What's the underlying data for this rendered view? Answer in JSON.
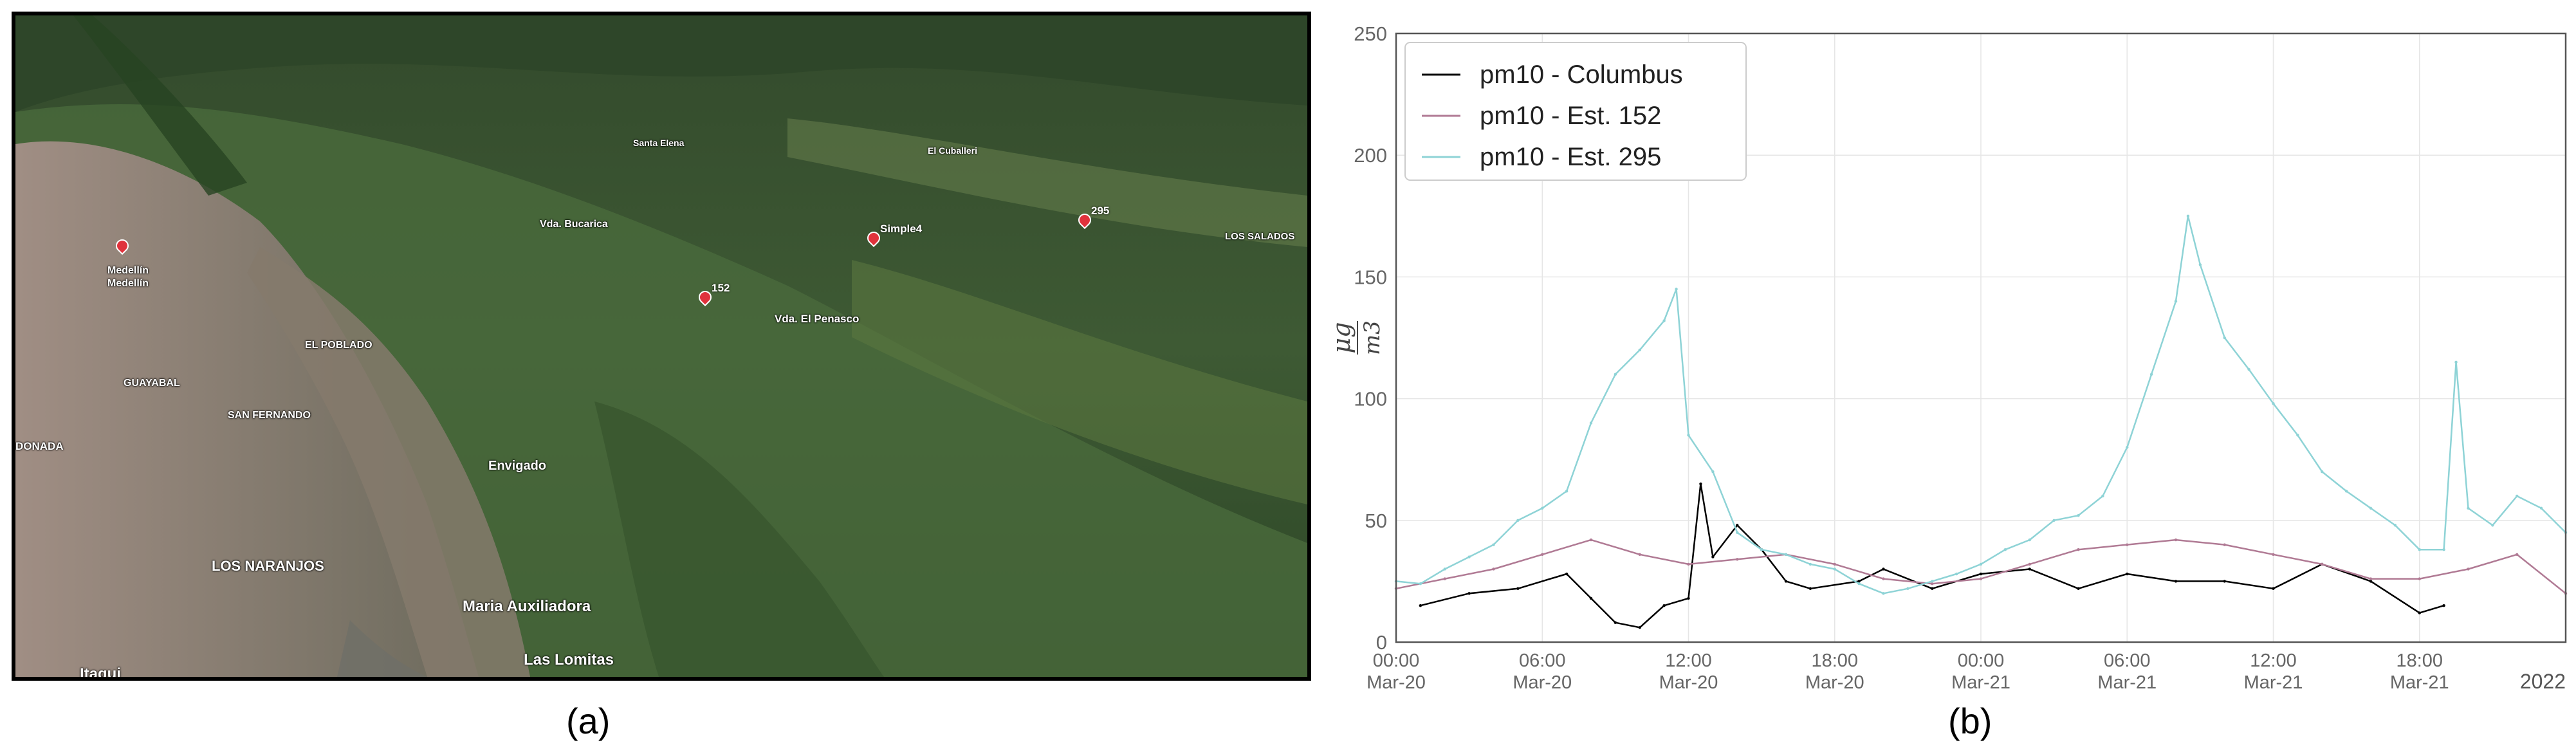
{
  "captions": {
    "left": "(a)",
    "right": "(b)"
  },
  "map": {
    "places": [
      {
        "label": "Santa Elena"
      },
      {
        "label": "El Cuballeri"
      },
      {
        "label": "Vda. Bucarica"
      },
      {
        "label": "LOS SALADOS"
      },
      {
        "label": "Medellín"
      },
      {
        "label": "Medellín"
      },
      {
        "label": "Vda. El Penasco"
      },
      {
        "label": "EL POBLADO"
      },
      {
        "label": "GUAYABAL"
      },
      {
        "label": "SAN FERNANDO"
      },
      {
        "label": "DONADA"
      },
      {
        "label": "Envigado"
      },
      {
        "label": "LOS NARANJOS"
      },
      {
        "label": "Maria Auxiliadora"
      },
      {
        "label": "Las Lomitas"
      },
      {
        "label": "Itagui"
      }
    ],
    "markers": [
      {
        "label": "152"
      },
      {
        "label": "Simple4"
      },
      {
        "label": "295"
      },
      {
        "label": ""
      }
    ]
  },
  "chart_data": {
    "type": "line",
    "title": "",
    "ylabel_num": "μg",
    "ylabel_den": "m3",
    "ylim": [
      0,
      250
    ],
    "yticks": [
      0,
      50,
      100,
      150,
      200,
      250
    ],
    "xlim_hours": [
      0,
      48
    ],
    "xtick_hours": [
      0,
      6,
      12,
      18,
      24,
      30,
      36,
      42
    ],
    "xtick_labels_top": [
      "00:00",
      "06:00",
      "12:00",
      "18:00",
      "00:00",
      "06:00",
      "12:00",
      "18:00"
    ],
    "xtick_labels_bottom": [
      "Mar-20",
      "Mar-20",
      "Mar-20",
      "Mar-20",
      "Mar-21",
      "Mar-21",
      "Mar-21",
      "Mar-21"
    ],
    "x_offset_label": "2022",
    "grid": true,
    "legend_position": "top-left",
    "series": [
      {
        "name": "pm10 - Columbus",
        "color": "#000000",
        "x": [
          1.0,
          3.0,
          5.0,
          7.0,
          8.0,
          9.0,
          10.0,
          11.0,
          12.0,
          12.5,
          13.0,
          14.0,
          15.0,
          16.0,
          17.0,
          19.0,
          20.0,
          22.0,
          24.0,
          26.0,
          28.0,
          30.0,
          32.0,
          34.0,
          36.0,
          38.0,
          40.0,
          42.0,
          43.0
        ],
        "y": [
          15,
          20,
          22,
          28,
          18,
          8,
          6,
          15,
          18,
          65,
          35,
          48,
          38,
          25,
          22,
          25,
          30,
          22,
          28,
          30,
          22,
          28,
          25,
          25,
          22,
          32,
          25,
          12,
          15
        ]
      },
      {
        "name": "pm10 - Est. 152",
        "color": "#B07A94",
        "x": [
          0,
          2,
          4,
          6,
          8,
          10,
          12,
          14,
          16,
          18,
          20,
          22,
          24,
          26,
          28,
          30,
          32,
          34,
          36,
          38,
          40,
          42,
          44,
          46,
          48
        ],
        "y": [
          22,
          26,
          30,
          36,
          42,
          36,
          32,
          34,
          36,
          32,
          26,
          24,
          26,
          32,
          38,
          40,
          42,
          40,
          36,
          32,
          26,
          26,
          30,
          36,
          20
        ]
      },
      {
        "name": "pm10 - Est. 295",
        "color": "#8ED3D6",
        "x": [
          0,
          1,
          2,
          3,
          4,
          5,
          6,
          7,
          8,
          9,
          10,
          11,
          11.5,
          12,
          13,
          14,
          15,
          16,
          17,
          18,
          19,
          20,
          21,
          22,
          23,
          24,
          25,
          26,
          27,
          28,
          29,
          30,
          31,
          32,
          32.5,
          33,
          34,
          35,
          36,
          37,
          38,
          39,
          40,
          41,
          42,
          43,
          43.5,
          44,
          45,
          46,
          47,
          48
        ],
        "y": [
          25,
          24,
          30,
          35,
          40,
          50,
          55,
          62,
          90,
          110,
          120,
          132,
          145,
          85,
          70,
          45,
          38,
          36,
          32,
          30,
          24,
          20,
          22,
          25,
          28,
          32,
          38,
          42,
          50,
          52,
          60,
          80,
          110,
          140,
          175,
          155,
          125,
          112,
          98,
          85,
          70,
          62,
          55,
          48,
          38,
          38,
          115,
          55,
          48,
          60,
          55,
          45
        ]
      }
    ]
  }
}
